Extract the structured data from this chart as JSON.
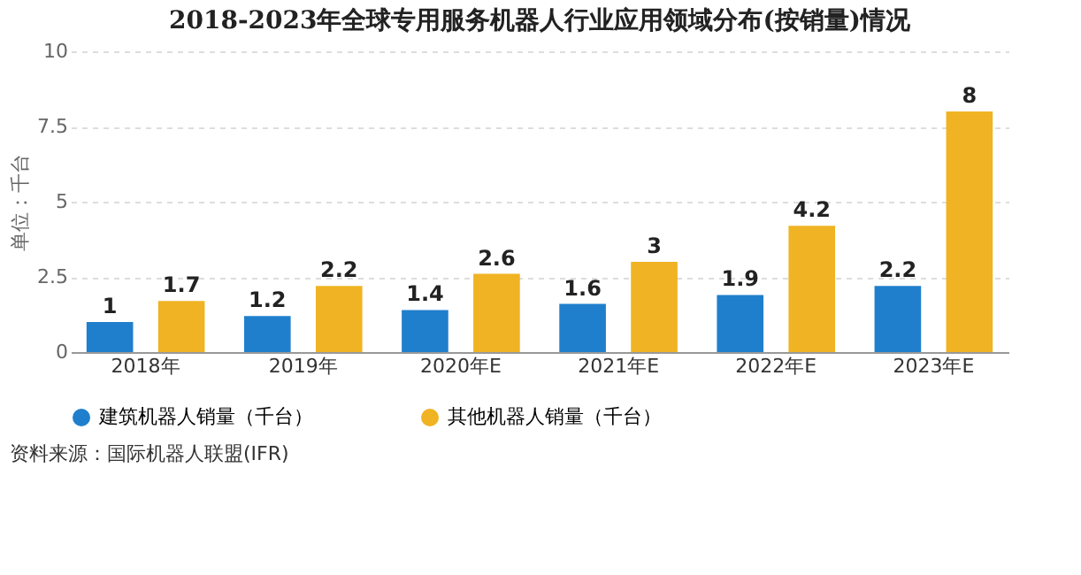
{
  "chart_data": {
    "type": "bar",
    "title": "2018-2023年全球专用服务机器人行业应用领域分布(按销量)情况",
    "ylabel": "单位：千台",
    "categories": [
      "2018年",
      "2019年",
      "2020年E",
      "2021年E",
      "2022年E",
      "2023年E"
    ],
    "series": [
      {
        "name": "建筑机器人销量（千台）",
        "color": "#1f7fcc",
        "values": [
          1,
          1.2,
          1.4,
          1.6,
          1.9,
          2.2
        ]
      },
      {
        "name": "其他机器人销量（千台）",
        "color": "#f0b323",
        "values": [
          1.7,
          2.2,
          2.6,
          3,
          4.2,
          8
        ]
      }
    ],
    "ylim": [
      0,
      10
    ],
    "yticks": [
      0,
      2.5,
      5,
      7.5,
      10
    ],
    "grid": "y",
    "legend": "bottom",
    "data_labels": true,
    "annotations": [
      "资料来源：国际机器人联盟(IFR)"
    ]
  }
}
